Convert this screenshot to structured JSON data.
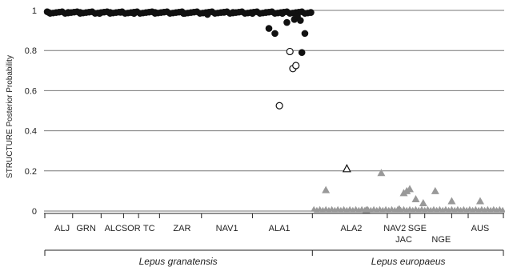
{
  "chart_data": {
    "type": "scatter",
    "ylabel": "STRUCTURE Posterior Probability",
    "ylim": [
      0,
      1
    ],
    "yticks": [
      "0",
      "0.2",
      "0.4",
      "0.6",
      "0.8",
      "1"
    ],
    "grid": true,
    "x_count": 305,
    "populations_row1": [
      {
        "label": "ALJ",
        "center": 10
      },
      {
        "label": "GRN",
        "center": 26
      },
      {
        "label": "ALC",
        "center": 44
      },
      {
        "label": "SOR",
        "center": 56
      },
      {
        "label": "TC",
        "center": 68
      },
      {
        "label": "ZAR",
        "center": 90
      },
      {
        "label": "NAV1",
        "center": 120
      },
      {
        "label": "ALA1",
        "center": 155
      },
      {
        "label": "ALA2",
        "center": 203
      },
      {
        "label": "NAV2",
        "center": 232
      },
      {
        "label": "SGE",
        "center": 247
      },
      {
        "label": "AUS",
        "center": 289
      }
    ],
    "populations_row2": [
      {
        "label": "JAC",
        "center": 238
      },
      {
        "label": "NGE",
        "center": 263
      }
    ],
    "group_separators": [
      17,
      36,
      51,
      61,
      75,
      103,
      137,
      177,
      227,
      242,
      252,
      270,
      281
    ],
    "species": [
      {
        "label": "Lepus granatensis",
        "from": 0,
        "to": 177
      },
      {
        "label": "Lepus europaeus",
        "from": 177,
        "to": 305
      }
    ],
    "series": [
      {
        "marker": "filled-circle",
        "color": "#111111",
        "points": [
          [
            1,
            0.99
          ],
          [
            14,
            0.99
          ],
          [
            22,
            0.99
          ],
          [
            35,
            0.985
          ],
          [
            42,
            0.99
          ],
          [
            49,
            0.99
          ],
          [
            58,
            0.985
          ],
          [
            72,
            0.99
          ],
          [
            91,
            0.985
          ],
          [
            107,
            0.98
          ],
          [
            118,
            0.99
          ],
          [
            124,
            0.99
          ],
          [
            137,
            0.985
          ],
          [
            146,
            0.99
          ],
          [
            148,
            0.91
          ],
          [
            152,
            0.885
          ],
          [
            157,
            0.985
          ],
          [
            160,
            0.94
          ],
          [
            165,
            0.955
          ],
          [
            167,
            0.97
          ],
          [
            169,
            0.95
          ],
          [
            170,
            0.79
          ],
          [
            172,
            0.885
          ],
          [
            176,
            0.99
          ]
        ]
      },
      {
        "marker": "open-circle",
        "color": "#111111",
        "points": [
          [
            155,
            0.525
          ],
          [
            162,
            0.795
          ],
          [
            164,
            0.71
          ],
          [
            166,
            0.725
          ]
        ]
      },
      {
        "marker": "filled-triangle",
        "color": "#999999",
        "points": [
          [
            186,
            0.105
          ],
          [
            213,
            0.005
          ],
          [
            223,
            0.19
          ],
          [
            235,
            0.01
          ],
          [
            238,
            0.09
          ],
          [
            240,
            0.1
          ],
          [
            242,
            0.11
          ],
          [
            246,
            0.06
          ],
          [
            251,
            0.04
          ],
          [
            259,
            0.1
          ],
          [
            270,
            0.05
          ],
          [
            289,
            0.05
          ]
        ]
      },
      {
        "marker": "open-triangle",
        "color": "#111111",
        "points": [
          [
            200,
            0.21
          ]
        ]
      }
    ]
  }
}
